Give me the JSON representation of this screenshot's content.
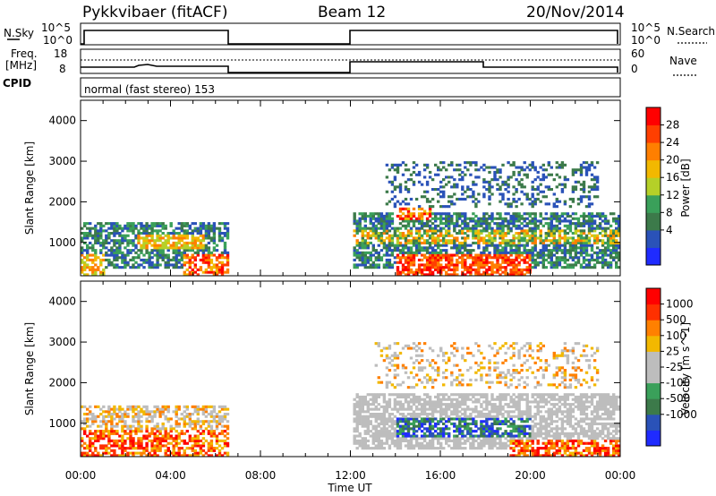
{
  "header": {
    "radar": "Pykkvibaer (fitACF)",
    "beam": "Beam 12",
    "date": "20/Nov/2014"
  },
  "top_panels": {
    "nsky_label": "N.Sky",
    "nsky_ticks": [
      "10^5",
      "10^0"
    ],
    "nsearch_label": "N.Search",
    "nsearch_ticks": [
      "10^5",
      "10^0"
    ],
    "freq_label": "Freq.",
    "freq_unit": "[MHz]",
    "freq_ticks": [
      "18",
      "8"
    ],
    "nave_label": "Nave",
    "nave_ticks": [
      "60",
      "0"
    ],
    "cpid_label": "CPID",
    "cpid_text": "normal (fast stereo) 153"
  },
  "colors": {
    "power": [
      "#1f2bff",
      "#2a52b8",
      "#3c7a4a",
      "#3aa05a",
      "#b5d028",
      "#f2b800",
      "#ff7f00",
      "#ff3f00",
      "#ff0000"
    ],
    "velocity": [
      "#1f2bff",
      "#2a52b8",
      "#3c7a4a",
      "#3aa05a",
      "#bdbdbd",
      "#bdbdbd",
      "#f2b800",
      "#ff8000",
      "#ff3000",
      "#ff0000"
    ]
  },
  "chart_data": [
    {
      "type": "heatmap",
      "name": "power",
      "ylabel": "Slant Range [km]",
      "colorbar_label": "Power [dB]",
      "colorbar_ticks": [
        "28",
        "24",
        "20",
        "16",
        "12",
        "8",
        "4"
      ],
      "xlabel": "",
      "x_ticks": [
        "00:00",
        "04:00",
        "08:00",
        "12:00",
        "16:00",
        "20:00",
        "00:00"
      ],
      "y_ticks": [
        "4000",
        "3000",
        "2000",
        "1000"
      ],
      "xlim_hours": [
        0,
        24
      ],
      "ylim_km": [
        180,
        4500
      ],
      "data_gaps_hours": [
        [
          6.5,
          12.0
        ]
      ]
    },
    {
      "type": "heatmap",
      "name": "velocity",
      "ylabel": "Slant Range [km]",
      "colorbar_label": "Velocity [m s^-1]",
      "colorbar_ticks": [
        "1000",
        "500",
        "100",
        "25",
        "-25",
        "-100",
        "-500",
        "-1000"
      ],
      "xlabel": "Time UT",
      "x_ticks": [
        "00:00",
        "04:00",
        "08:00",
        "12:00",
        "16:00",
        "20:00",
        "00:00"
      ],
      "y_ticks": [
        "4000",
        "3000",
        "2000",
        "1000"
      ],
      "xlim_hours": [
        0,
        24
      ],
      "ylim_km": [
        180,
        4500
      ],
      "data_gaps_hours": [
        [
          6.5,
          12.0
        ]
      ]
    }
  ]
}
